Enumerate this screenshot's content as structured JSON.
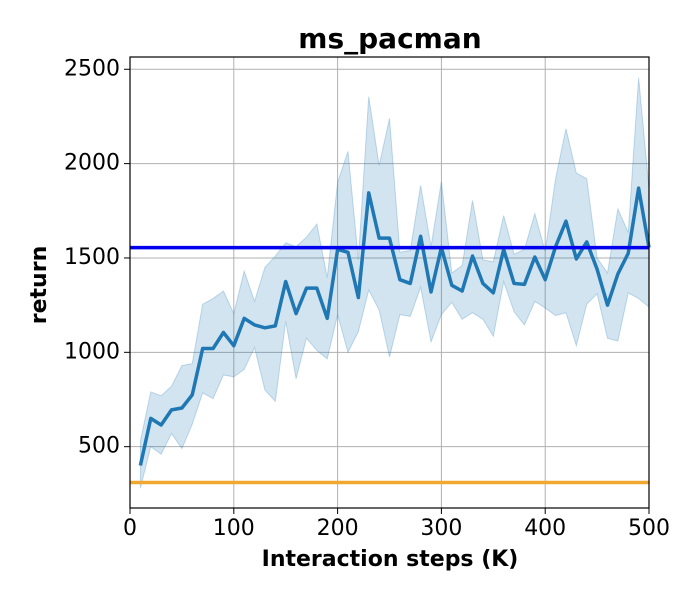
{
  "chart_data": {
    "type": "line",
    "title": "ms_pacman",
    "xlabel": "Interaction steps (K)",
    "ylabel": "return",
    "x": [
      10,
      20,
      30,
      40,
      50,
      60,
      70,
      80,
      90,
      100,
      110,
      120,
      130,
      140,
      150,
      160,
      170,
      180,
      190,
      200,
      210,
      220,
      230,
      240,
      250,
      260,
      270,
      280,
      290,
      300,
      310,
      320,
      330,
      340,
      350,
      360,
      370,
      380,
      390,
      400,
      410,
      420,
      430,
      440,
      450,
      460,
      470,
      480,
      490,
      500
    ],
    "series": [
      {
        "color": "#1f77b4",
        "values": [
          400,
          650,
          615,
          695,
          705,
          775,
          1020,
          1020,
          1105,
          1035,
          1180,
          1145,
          1130,
          1140,
          1375,
          1205,
          1340,
          1340,
          1180,
          1545,
          1530,
          1290,
          1845,
          1605,
          1605,
          1385,
          1365,
          1615,
          1320,
          1555,
          1355,
          1325,
          1510,
          1365,
          1315,
          1545,
          1365,
          1360,
          1505,
          1385,
          1560,
          1695,
          1495,
          1585,
          1440,
          1250,
          1415,
          1525,
          1870,
          1555
        ],
        "upper": [
          530,
          790,
          770,
          820,
          930,
          940,
          1255,
          1285,
          1325,
          1205,
          1430,
          1270,
          1450,
          1510,
          1580,
          1560,
          1610,
          1680,
          1395,
          1900,
          2065,
          1490,
          2355,
          1990,
          2240,
          1530,
          1540,
          1885,
          1560,
          1905,
          1420,
          1460,
          1805,
          1490,
          1480,
          1725,
          1520,
          1545,
          1735,
          1535,
          1920,
          2185,
          1950,
          1920,
          1500,
          1420,
          1760,
          1635,
          2455,
          1870
        ],
        "lower": [
          280,
          500,
          460,
          570,
          490,
          620,
          785,
          755,
          880,
          870,
          910,
          1025,
          800,
          740,
          1165,
          860,
          1075,
          1010,
          965,
          1200,
          1000,
          1110,
          1330,
          1225,
          975,
          1200,
          1190,
          1345,
          1055,
          1200,
          1265,
          1175,
          1210,
          1175,
          1085,
          1375,
          1215,
          1145,
          1270,
          1235,
          1195,
          1210,
          1035,
          1255,
          1310,
          1075,
          1060,
          1315,
          1285,
          1240
        ]
      }
    ],
    "hlines": [
      {
        "value": 1555,
        "color": "#0000ee"
      },
      {
        "value": 310,
        "color": "#f0a830"
      }
    ],
    "xlim": [
      0,
      500
    ],
    "ylim": [
      175,
      2565
    ],
    "xticks": [
      0,
      100,
      200,
      300,
      400,
      500
    ],
    "yticks": [
      500,
      1000,
      1500,
      2000,
      2500
    ],
    "grid": true
  }
}
